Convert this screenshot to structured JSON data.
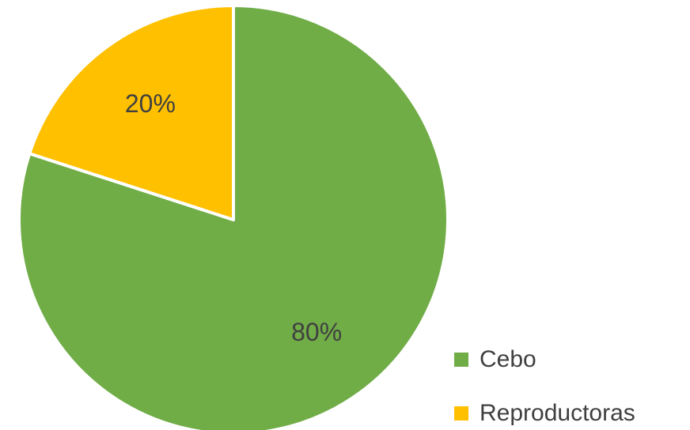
{
  "chart_data": {
    "type": "pie",
    "categories": [
      "Cebo",
      "Reproductoras"
    ],
    "values": [
      80,
      20
    ],
    "value_labels": [
      "80%",
      "20%"
    ],
    "colors": [
      "#70ad47",
      "#ffc000"
    ],
    "legend": "right"
  }
}
